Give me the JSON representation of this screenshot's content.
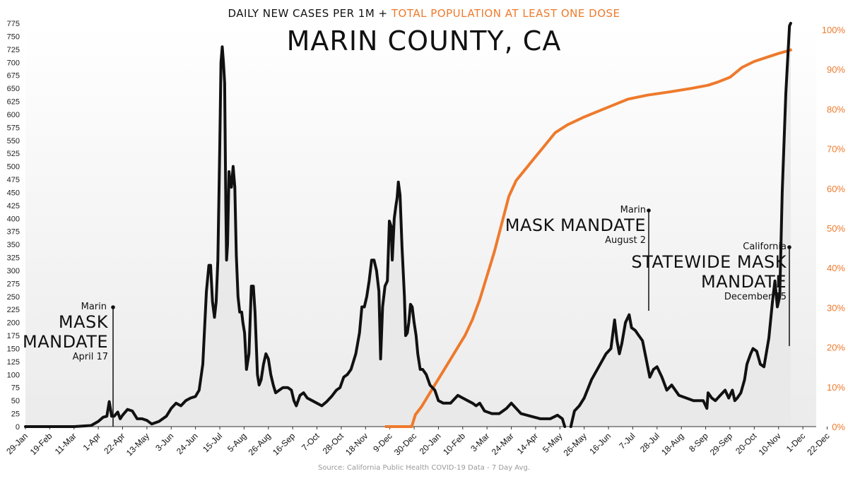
{
  "title_line": {
    "part1": "DAILY NEW CASES PER 1M + ",
    "part2": "TOTAL POPULATION AT LEAST ONE DOSE"
  },
  "title": "MARIN COUNTY, CA",
  "source": "Source: California Public Health COVID-19 Data - 7 Day Avg.",
  "annotations": [
    {
      "place": "Marin",
      "line1": "MASK",
      "line2": "MANDATE",
      "date": "April 17"
    },
    {
      "place": "Marin",
      "line1": "MASK MANDATE",
      "line2": "",
      "date": "August 2"
    },
    {
      "place": "California",
      "line1": "STATEWIDE MASK",
      "line2": "MANDATE",
      "date": "December 15"
    }
  ],
  "colors": {
    "cases": "#111111",
    "doses": "#ee7a2c",
    "fill": "#e9e9e9",
    "grid": "#ffffff"
  },
  "chart_data": {
    "type": "line",
    "x_tick_labels": [
      "29-Jan",
      "19-Feb",
      "11-Mar",
      "1-Apr",
      "22-Apr",
      "13-May",
      "3-Jun",
      "24-Jun",
      "15-Jul",
      "5-Aug",
      "26-Aug",
      "16-Sep",
      "7-Oct",
      "28-Oct",
      "18-Nov",
      "9-Dec",
      "30-Dec",
      "20-Jan",
      "10-Feb",
      "3-Mar",
      "24-Mar",
      "14-Apr",
      "5-May",
      "26-May",
      "16-Jun",
      "7-Jul",
      "28-Jul",
      "18-Aug",
      "8-Sep",
      "29-Sep",
      "20-Oct",
      "10-Nov",
      "1-Dec",
      "22-Dec"
    ],
    "y_left": {
      "min": 0,
      "max": 775,
      "step": 25
    },
    "y_right": {
      "min": 0,
      "max": 100,
      "step": 10,
      "unit": "%"
    },
    "series": [
      {
        "name": "DAILY NEW CASES PER 1M",
        "axis": "left",
        "points": [
          [
            0,
            0
          ],
          [
            2,
            0
          ],
          [
            2.7,
            2
          ],
          [
            3,
            10
          ],
          [
            3.2,
            18
          ],
          [
            3.35,
            20
          ],
          [
            3.45,
            48
          ],
          [
            3.55,
            20
          ],
          [
            3.65,
            20
          ],
          [
            3.8,
            28
          ],
          [
            3.9,
            15
          ],
          [
            4,
            22
          ],
          [
            4.2,
            33
          ],
          [
            4.4,
            30
          ],
          [
            4.6,
            15
          ],
          [
            4.8,
            15
          ],
          [
            5,
            12
          ],
          [
            5.2,
            5
          ],
          [
            5.5,
            10
          ],
          [
            5.8,
            20
          ],
          [
            6,
            35
          ],
          [
            6.2,
            45
          ],
          [
            6.4,
            40
          ],
          [
            6.6,
            50
          ],
          [
            6.8,
            55
          ],
          [
            7,
            58
          ],
          [
            7.15,
            70
          ],
          [
            7.3,
            120
          ],
          [
            7.45,
            260
          ],
          [
            7.55,
            310
          ],
          [
            7.62,
            310
          ],
          [
            7.7,
            240
          ],
          [
            7.78,
            210
          ],
          [
            7.85,
            240
          ],
          [
            7.92,
            320
          ],
          [
            8,
            540
          ],
          [
            8.05,
            700
          ],
          [
            8.1,
            730
          ],
          [
            8.15,
            700
          ],
          [
            8.2,
            660
          ],
          [
            8.25,
            420
          ],
          [
            8.28,
            320
          ],
          [
            8.32,
            350
          ],
          [
            8.38,
            490
          ],
          [
            8.42,
            470
          ],
          [
            8.48,
            460
          ],
          [
            8.55,
            500
          ],
          [
            8.62,
            460
          ],
          [
            8.68,
            330
          ],
          [
            8.75,
            250
          ],
          [
            8.82,
            220
          ],
          [
            8.9,
            220
          ],
          [
            8.95,
            200
          ],
          [
            9.02,
            180
          ],
          [
            9.1,
            110
          ],
          [
            9.2,
            140
          ],
          [
            9.3,
            270
          ],
          [
            9.38,
            270
          ],
          [
            9.45,
            220
          ],
          [
            9.55,
            100
          ],
          [
            9.62,
            80
          ],
          [
            9.7,
            90
          ],
          [
            9.8,
            120
          ],
          [
            9.9,
            140
          ],
          [
            10,
            130
          ],
          [
            10.1,
            100
          ],
          [
            10.2,
            80
          ],
          [
            10.3,
            65
          ],
          [
            10.45,
            70
          ],
          [
            10.6,
            75
          ],
          [
            10.8,
            75
          ],
          [
            10.95,
            70
          ],
          [
            11.05,
            50
          ],
          [
            11.15,
            40
          ],
          [
            11.3,
            60
          ],
          [
            11.45,
            65
          ],
          [
            11.6,
            55
          ],
          [
            11.8,
            50
          ],
          [
            12,
            45
          ],
          [
            12.2,
            40
          ],
          [
            12.4,
            48
          ],
          [
            12.6,
            58
          ],
          [
            12.8,
            70
          ],
          [
            12.95,
            75
          ],
          [
            13.1,
            95
          ],
          [
            13.25,
            100
          ],
          [
            13.4,
            110
          ],
          [
            13.6,
            140
          ],
          [
            13.75,
            180
          ],
          [
            13.85,
            230
          ],
          [
            13.95,
            230
          ],
          [
            14.05,
            250
          ],
          [
            14.15,
            280
          ],
          [
            14.25,
            320
          ],
          [
            14.35,
            320
          ],
          [
            14.45,
            300
          ],
          [
            14.55,
            260
          ],
          [
            14.62,
            130
          ],
          [
            14.7,
            230
          ],
          [
            14.8,
            270
          ],
          [
            14.9,
            280
          ],
          [
            14.98,
            395
          ],
          [
            15.05,
            385
          ],
          [
            15.1,
            320
          ],
          [
            15.18,
            400
          ],
          [
            15.25,
            425
          ],
          [
            15.3,
            440
          ],
          [
            15.35,
            470
          ],
          [
            15.42,
            445
          ],
          [
            15.5,
            345
          ],
          [
            15.6,
            250
          ],
          [
            15.65,
            175
          ],
          [
            15.72,
            180
          ],
          [
            15.78,
            200
          ],
          [
            15.85,
            235
          ],
          [
            15.92,
            230
          ],
          [
            16,
            200
          ],
          [
            16.08,
            175
          ],
          [
            16.15,
            140
          ],
          [
            16.25,
            110
          ],
          [
            16.35,
            110
          ],
          [
            16.5,
            100
          ],
          [
            16.65,
            80
          ],
          [
            16.85,
            70
          ],
          [
            17,
            50
          ],
          [
            17.2,
            45
          ],
          [
            17.5,
            45
          ],
          [
            17.8,
            60
          ],
          [
            18,
            55
          ],
          [
            18.2,
            50
          ],
          [
            18.4,
            45
          ],
          [
            18.55,
            40
          ],
          [
            18.7,
            45
          ],
          [
            18.9,
            30
          ],
          [
            19.2,
            25
          ],
          [
            19.5,
            25
          ],
          [
            19.8,
            35
          ],
          [
            20,
            45
          ],
          [
            20.2,
            35
          ],
          [
            20.4,
            25
          ],
          [
            20.8,
            20
          ],
          [
            21.2,
            15
          ],
          [
            21.6,
            15
          ],
          [
            21.9,
            22
          ],
          [
            22.1,
            15
          ],
          [
            22.2,
            0
          ],
          [
            22.45,
            0
          ],
          [
            22.5,
            10
          ],
          [
            22.6,
            30
          ],
          [
            22.8,
            40
          ],
          [
            23,
            55
          ],
          [
            23.3,
            90
          ],
          [
            23.6,
            115
          ],
          [
            23.9,
            140
          ],
          [
            24.1,
            150
          ],
          [
            24.25,
            205
          ],
          [
            24.35,
            165
          ],
          [
            24.45,
            140
          ],
          [
            24.55,
            160
          ],
          [
            24.7,
            200
          ],
          [
            24.85,
            215
          ],
          [
            24.95,
            190
          ],
          [
            25.1,
            185
          ],
          [
            25.25,
            175
          ],
          [
            25.4,
            165
          ],
          [
            25.55,
            130
          ],
          [
            25.7,
            95
          ],
          [
            25.85,
            110
          ],
          [
            26,
            115
          ],
          [
            26.2,
            95
          ],
          [
            26.4,
            70
          ],
          [
            26.6,
            80
          ],
          [
            26.9,
            60
          ],
          [
            27.2,
            55
          ],
          [
            27.5,
            50
          ],
          [
            27.75,
            50
          ],
          [
            27.9,
            50
          ],
          [
            28.05,
            35
          ],
          [
            28.1,
            65
          ],
          [
            28.25,
            55
          ],
          [
            28.4,
            50
          ],
          [
            28.6,
            60
          ],
          [
            28.8,
            70
          ],
          [
            28.95,
            55
          ],
          [
            29.1,
            70
          ],
          [
            29.2,
            50
          ],
          [
            29.3,
            55
          ],
          [
            29.45,
            65
          ],
          [
            29.6,
            90
          ],
          [
            29.7,
            120
          ],
          [
            29.85,
            140
          ],
          [
            29.95,
            150
          ],
          [
            30.1,
            145
          ],
          [
            30.25,
            120
          ],
          [
            30.4,
            115
          ],
          [
            30.6,
            170
          ],
          [
            30.75,
            240
          ],
          [
            30.85,
            280
          ],
          [
            30.95,
            230
          ],
          [
            31.05,
            250
          ],
          [
            31.15,
            450
          ],
          [
            31.3,
            640
          ],
          [
            31.45,
            770
          ],
          [
            31.5,
            775
          ]
        ]
      },
      {
        "name": "TOTAL POPULATION AT LEAST ONE DOSE",
        "axis": "right",
        "points": [
          [
            14.8,
            0
          ],
          [
            15.4,
            0
          ],
          [
            15.9,
            0
          ],
          [
            16.05,
            3
          ],
          [
            16.3,
            5
          ],
          [
            16.6,
            8
          ],
          [
            16.8,
            10
          ],
          [
            17.1,
            13
          ],
          [
            17.4,
            16
          ],
          [
            17.8,
            20
          ],
          [
            18.1,
            23
          ],
          [
            18.4,
            27
          ],
          [
            18.7,
            32
          ],
          [
            19,
            38
          ],
          [
            19.3,
            44
          ],
          [
            19.6,
            51
          ],
          [
            19.9,
            58
          ],
          [
            20.2,
            62
          ],
          [
            20.6,
            65
          ],
          [
            21,
            68
          ],
          [
            21.4,
            71
          ],
          [
            21.8,
            74
          ],
          [
            22.3,
            76
          ],
          [
            23,
            78
          ],
          [
            23.6,
            79.5
          ],
          [
            24.2,
            81
          ],
          [
            24.8,
            82.5
          ],
          [
            25.6,
            83.5
          ],
          [
            26.5,
            84.3
          ],
          [
            27.4,
            85.2
          ],
          [
            28.1,
            86
          ],
          [
            28.5,
            86.8
          ],
          [
            29,
            88
          ],
          [
            29.5,
            90.5
          ],
          [
            30,
            92
          ],
          [
            30.5,
            93
          ],
          [
            31,
            94
          ],
          [
            31.4,
            94.7
          ],
          [
            31.55,
            95
          ]
        ]
      }
    ]
  }
}
